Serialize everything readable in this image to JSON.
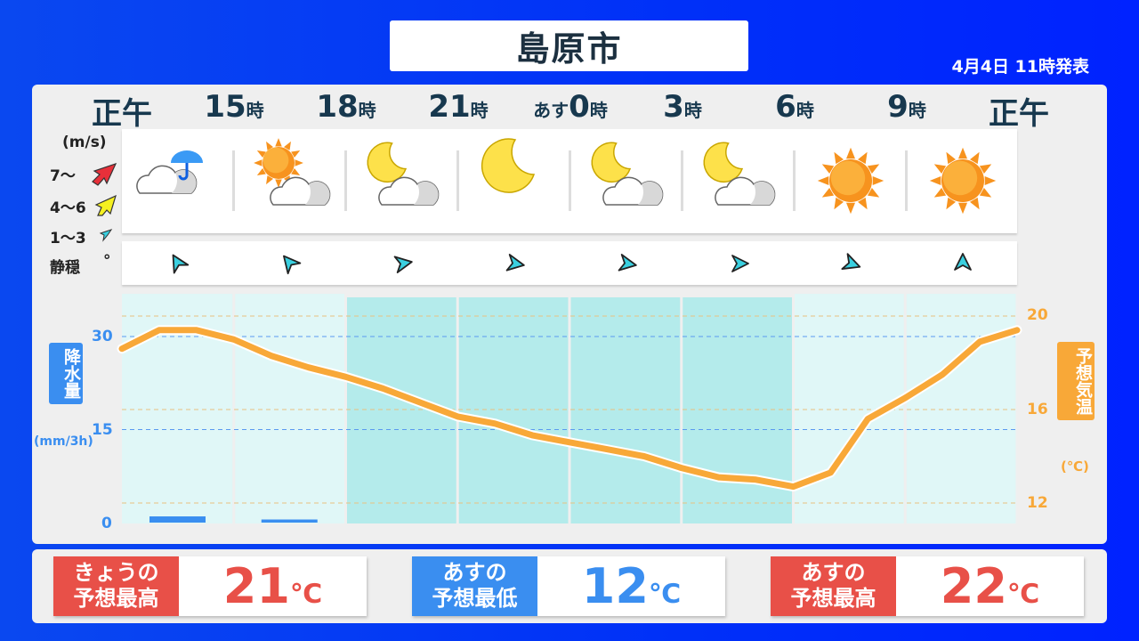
{
  "header": {
    "city": "島原市",
    "issued": "4月4日 11時発表"
  },
  "times": [
    {
      "num": "正午",
      "unit": ""
    },
    {
      "num": "15",
      "unit": "時"
    },
    {
      "num": "18",
      "unit": "時"
    },
    {
      "num": "21",
      "unit": "時"
    },
    {
      "num": "0",
      "unit": "時",
      "prefix": "あす"
    },
    {
      "num": "3",
      "unit": "時"
    },
    {
      "num": "6",
      "unit": "時"
    },
    {
      "num": "9",
      "unit": "時"
    },
    {
      "num": "正午",
      "unit": ""
    }
  ],
  "weather_icons": [
    "cloud-umbrella-icon",
    "sun-cloud-icon",
    "moon-cloud-icon",
    "moon-icon",
    "moon-cloud-icon",
    "moon-cloud-icon",
    "sun-icon",
    "sun-icon"
  ],
  "wind_legend": {
    "unit": "(m/s)",
    "levels": [
      {
        "label": "7〜",
        "color": "#e8303a"
      },
      {
        "label": "4〜6",
        "color": "#f5f020"
      },
      {
        "label": "1〜3",
        "color": "#3ad0e0"
      },
      {
        "label": "静穏",
        "symbol": "°"
      }
    ]
  },
  "wind": [
    {
      "speed": "1〜3",
      "direction_deg": -30
    },
    {
      "speed": "1〜3",
      "direction_deg": -40
    },
    {
      "speed": "1〜3",
      "direction_deg": 80
    },
    {
      "speed": "1〜3",
      "direction_deg": 100
    },
    {
      "speed": "1〜3",
      "direction_deg": 100
    },
    {
      "speed": "1〜3",
      "direction_deg": 90
    },
    {
      "speed": "1〜3",
      "direction_deg": 110
    },
    {
      "speed": "1〜3",
      "direction_deg": 0
    }
  ],
  "chart_data": {
    "type": "line+bar",
    "x_hours_from_noon": [
      0,
      1,
      2,
      3,
      4,
      5,
      6,
      7,
      8,
      9,
      10,
      11,
      12,
      13,
      14,
      15,
      16,
      17,
      18,
      19,
      20,
      21,
      22,
      23,
      24
    ],
    "temperature": {
      "label": "予想気温",
      "unit": "(℃)",
      "ylim": [
        11,
        21.5
      ],
      "ticks": [
        12,
        16,
        20
      ],
      "color": "#f8a838",
      "values": [
        18.6,
        19.4,
        19.4,
        19.0,
        18.3,
        17.8,
        17.4,
        16.9,
        16.3,
        15.7,
        15.4,
        14.9,
        14.6,
        14.3,
        14.0,
        13.5,
        13.1,
        13.0,
        12.7,
        13.3,
        15.6,
        16.5,
        17.5,
        18.9,
        19.4
      ]
    },
    "precipitation": {
      "label": "降水量",
      "unit": "(mm/3h)",
      "ylim": [
        0,
        30
      ],
      "ticks": [
        0,
        15,
        30
      ],
      "color": "#3a8ef0",
      "values": [
        1,
        0.5,
        0,
        0,
        0,
        0,
        0,
        0
      ]
    },
    "night_columns": [
      2,
      3,
      4,
      5
    ]
  },
  "summary": [
    {
      "label1": "きょうの",
      "label2": "予想最高",
      "value": "21",
      "unit": "℃",
      "color": "#e85048"
    },
    {
      "label1": "あすの",
      "label2": "予想最低",
      "value": "12",
      "unit": "℃",
      "color": "#3a8ef0"
    },
    {
      "label1": "あすの",
      "label2": "予想最高",
      "value": "22",
      "unit": "℃",
      "color": "#e85048"
    }
  ]
}
